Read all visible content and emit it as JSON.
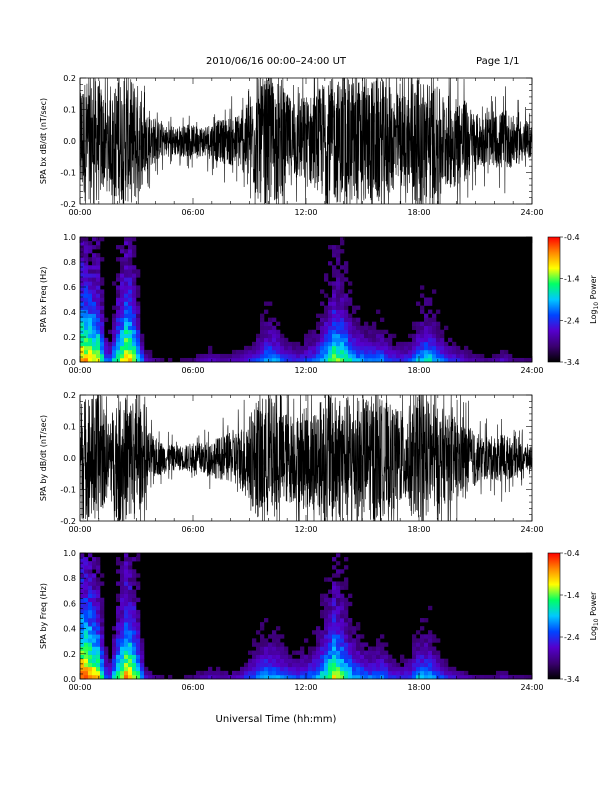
{
  "header": {
    "title": "2010/06/16  00:00–24:00 UT",
    "page": "Page 1/1"
  },
  "colorbar": {
    "ticks": [
      "-0.4",
      "-1.4",
      "-2.4",
      "-3.4"
    ],
    "tick_values": [
      -0.4,
      -1.4,
      -2.4,
      -3.4
    ],
    "range": [
      -3.4,
      -0.4
    ],
    "label_main": "Log",
    "label_sub": "10",
    "label_tail": " Power",
    "colors": [
      "#000000",
      "#3a0070",
      "#5500cc",
      "#0044ff",
      "#00c8ff",
      "#00ff66",
      "#ffff00",
      "#ff8800",
      "#ff0000"
    ]
  },
  "chart_data": [
    {
      "type": "line",
      "ylabel": "SPA bx dB/dt (nT/sec)",
      "xlim": [
        0,
        24
      ],
      "ylim": [
        -0.2,
        0.2
      ],
      "x_ticks": [
        0,
        6,
        12,
        18,
        24
      ],
      "x_tick_labels": [
        "00:00",
        "06:00",
        "12:00",
        "18:00",
        "24:00"
      ],
      "y_ticks": [
        -0.2,
        -0.1,
        0.0,
        0.1,
        0.2
      ],
      "y_tick_labels": [
        "-0.2",
        "-0.1",
        "0.0",
        "0.1",
        "0.2"
      ],
      "series": [
        {
          "color": "#000000",
          "x": [
            0,
            0.5,
            1,
            1.5,
            2,
            2.5,
            3,
            3.5,
            4,
            4.5,
            5,
            5.5,
            6,
            6.5,
            7,
            7.5,
            8,
            8.5,
            9,
            9.5,
            10,
            10.5,
            11,
            11.5,
            12,
            12.5,
            13,
            13.5,
            14,
            14.5,
            15,
            15.5,
            16,
            16.5,
            17,
            17.5,
            18,
            18.5,
            19,
            19.5,
            20,
            20.5,
            21,
            21.5,
            22,
            22.5,
            23,
            23.5,
            24
          ],
          "amplitude": [
            0.2,
            0.2,
            0.2,
            0.12,
            0.2,
            0.2,
            0.2,
            0.1,
            0.07,
            0.05,
            0.05,
            0.05,
            0.05,
            0.05,
            0.06,
            0.07,
            0.08,
            0.09,
            0.13,
            0.2,
            0.2,
            0.2,
            0.15,
            0.13,
            0.15,
            0.15,
            0.2,
            0.2,
            0.2,
            0.2,
            0.2,
            0.2,
            0.2,
            0.17,
            0.15,
            0.17,
            0.2,
            0.2,
            0.17,
            0.15,
            0.15,
            0.13,
            0.09,
            0.08,
            0.08,
            0.1,
            0.08,
            0.07,
            0.05
          ]
        }
      ]
    },
    {
      "type": "heatmap",
      "ylabel": "SPA bx Freq (Hz)",
      "xlim": [
        0,
        24
      ],
      "ylim": [
        0.0,
        1.0
      ],
      "x_ticks": [
        0,
        6,
        12,
        18,
        24
      ],
      "x_tick_labels": [
        "00:00",
        "06:00",
        "12:00",
        "18:00",
        "24:00"
      ],
      "y_ticks": [
        0.0,
        0.2,
        0.4,
        0.6,
        0.8,
        1.0
      ],
      "y_tick_labels": [
        "0.0",
        "0.2",
        "0.4",
        "0.6",
        "0.8",
        "1.0"
      ],
      "zlim": [
        -3.4,
        -0.4
      ],
      "x": [
        0,
        0.5,
        1,
        1.5,
        2,
        2.5,
        3,
        3.5,
        4,
        4.5,
        5,
        5.5,
        6,
        6.5,
        7,
        7.5,
        8,
        8.5,
        9,
        9.5,
        10,
        10.5,
        11,
        11.5,
        12,
        12.5,
        13,
        13.5,
        14,
        14.5,
        15,
        15.5,
        16,
        16.5,
        17,
        17.5,
        18,
        18.5,
        19,
        19.5,
        20,
        20.5,
        21,
        21.5,
        22,
        22.5,
        23,
        23.5,
        24
      ],
      "activity": [
        0.9,
        0.85,
        0.8,
        0.35,
        0.7,
        0.9,
        0.7,
        0.3,
        0.2,
        0.15,
        0.15,
        0.15,
        0.2,
        0.25,
        0.3,
        0.25,
        0.25,
        0.3,
        0.35,
        0.45,
        0.55,
        0.5,
        0.4,
        0.35,
        0.4,
        0.45,
        0.6,
        0.75,
        0.7,
        0.55,
        0.5,
        0.45,
        0.5,
        0.4,
        0.35,
        0.4,
        0.55,
        0.6,
        0.5,
        0.4,
        0.35,
        0.3,
        0.25,
        0.2,
        0.25,
        0.3,
        0.2,
        0.2,
        0.15
      ]
    },
    {
      "type": "line",
      "ylabel": "SPA by dB/dt (nT/sec)",
      "xlim": [
        0,
        24
      ],
      "ylim": [
        -0.2,
        0.2
      ],
      "x_ticks": [
        0,
        6,
        12,
        18,
        24
      ],
      "x_tick_labels": [
        "00:00",
        "06:00",
        "12:00",
        "18:00",
        "24:00"
      ],
      "y_ticks": [
        -0.2,
        -0.1,
        0.0,
        0.1,
        0.2
      ],
      "y_tick_labels": [
        "-0.2",
        "-0.1",
        "0.0",
        "0.1",
        "0.2"
      ],
      "series": [
        {
          "color": "#000000",
          "x": [
            0,
            0.5,
            1,
            1.5,
            2,
            2.5,
            3,
            3.5,
            4,
            4.5,
            5,
            5.5,
            6,
            6.5,
            7,
            7.5,
            8,
            8.5,
            9,
            9.5,
            10,
            10.5,
            11,
            11.5,
            12,
            12.5,
            13,
            13.5,
            14,
            14.5,
            15,
            15.5,
            16,
            16.5,
            17,
            17.5,
            18,
            18.5,
            19,
            19.5,
            20,
            20.5,
            21,
            21.5,
            22,
            22.5,
            23,
            23.5,
            24
          ],
          "amplitude": [
            0.2,
            0.2,
            0.2,
            0.12,
            0.2,
            0.2,
            0.2,
            0.1,
            0.06,
            0.05,
            0.04,
            0.04,
            0.05,
            0.05,
            0.06,
            0.07,
            0.08,
            0.1,
            0.14,
            0.2,
            0.2,
            0.18,
            0.15,
            0.14,
            0.16,
            0.17,
            0.2,
            0.2,
            0.2,
            0.2,
            0.2,
            0.2,
            0.19,
            0.17,
            0.15,
            0.17,
            0.2,
            0.19,
            0.16,
            0.14,
            0.13,
            0.11,
            0.08,
            0.07,
            0.07,
            0.08,
            0.06,
            0.05,
            0.04
          ]
        }
      ]
    },
    {
      "type": "heatmap",
      "ylabel": "SPA by Freq (Hz)",
      "xlim": [
        0,
        24
      ],
      "ylim": [
        0.0,
        1.0
      ],
      "x_ticks": [
        0,
        6,
        12,
        18,
        24
      ],
      "x_tick_labels": [
        "00:00",
        "06:00",
        "12:00",
        "18:00",
        "24:00"
      ],
      "y_ticks": [
        0.0,
        0.2,
        0.4,
        0.6,
        0.8,
        1.0
      ],
      "y_tick_labels": [
        "0.0",
        "0.2",
        "0.4",
        "0.6",
        "0.8",
        "1.0"
      ],
      "zlim": [
        -3.4,
        -0.4
      ],
      "x": [
        0,
        0.5,
        1,
        1.5,
        2,
        2.5,
        3,
        3.5,
        4,
        4.5,
        5,
        5.5,
        6,
        6.5,
        7,
        7.5,
        8,
        8.5,
        9,
        9.5,
        10,
        10.5,
        11,
        11.5,
        12,
        12.5,
        13,
        13.5,
        14,
        14.5,
        15,
        15.5,
        16,
        16.5,
        17,
        17.5,
        18,
        18.5,
        19,
        19.5,
        20,
        20.5,
        21,
        21.5,
        22,
        22.5,
        23,
        23.5,
        24
      ],
      "activity": [
        0.95,
        0.9,
        0.8,
        0.35,
        0.7,
        0.9,
        0.75,
        0.3,
        0.2,
        0.15,
        0.15,
        0.15,
        0.2,
        0.25,
        0.3,
        0.25,
        0.25,
        0.3,
        0.4,
        0.5,
        0.55,
        0.5,
        0.45,
        0.4,
        0.45,
        0.5,
        0.65,
        0.8,
        0.7,
        0.55,
        0.5,
        0.45,
        0.5,
        0.4,
        0.35,
        0.4,
        0.55,
        0.55,
        0.45,
        0.35,
        0.3,
        0.25,
        0.2,
        0.2,
        0.2,
        0.25,
        0.2,
        0.2,
        0.15
      ]
    }
  ],
  "xaxis_label": "Universal Time (hh:mm)"
}
